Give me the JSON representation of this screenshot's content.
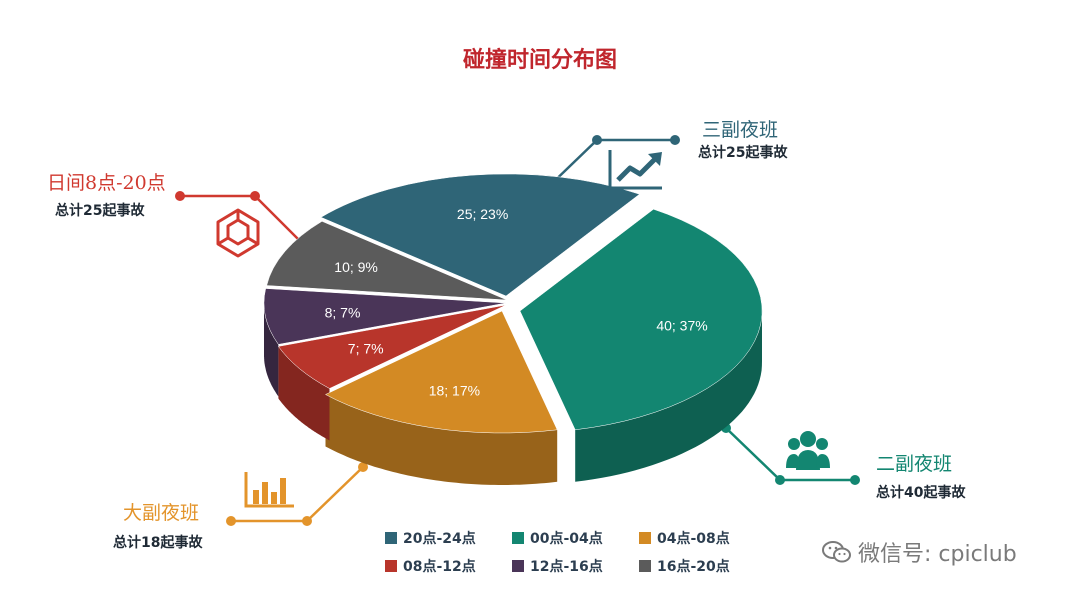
{
  "chart_data": {
    "type": "pie",
    "title": "碰撞时间分布图",
    "slices": [
      {
        "label": "20点-24点",
        "value": 25,
        "percent": "23%",
        "color": "#2f6577"
      },
      {
        "label": "00点-04点",
        "value": 40,
        "percent": "37%",
        "color": "#138671"
      },
      {
        "label": "04点-08点",
        "value": 18,
        "percent": "17%",
        "color": "#d38a24"
      },
      {
        "label": "08点-12点",
        "value": 7,
        "percent": "7%",
        "color": "#b8352b"
      },
      {
        "label": "12点-16点",
        "value": 8,
        "percent": "7%",
        "color": "#4a3558"
      },
      {
        "label": "16点-20点",
        "value": 10,
        "percent": "9%",
        "color": "#5b5b5b"
      }
    ],
    "legend_position": "bottom"
  },
  "callouts": {
    "sanfu": {
      "title": "三副夜班",
      "sub": "总计25起事故",
      "color": "#2f6577"
    },
    "erfu": {
      "title": "二副夜班",
      "sub": "总计40起事故",
      "color": "#138671"
    },
    "dafu": {
      "title": "大副夜班",
      "sub": "总计18起事故",
      "color": "#e3942b"
    },
    "rijian": {
      "title": "日间8点-20点",
      "sub": "总计25起事故",
      "color": "#d0392f"
    }
  },
  "icons": {
    "sanfu": "trend-chart-icon",
    "erfu": "people-group-icon",
    "dafu": "bar-chart-icon",
    "rijian": "cube-icon"
  },
  "watermark": {
    "text": "微信号: cpiclub"
  }
}
